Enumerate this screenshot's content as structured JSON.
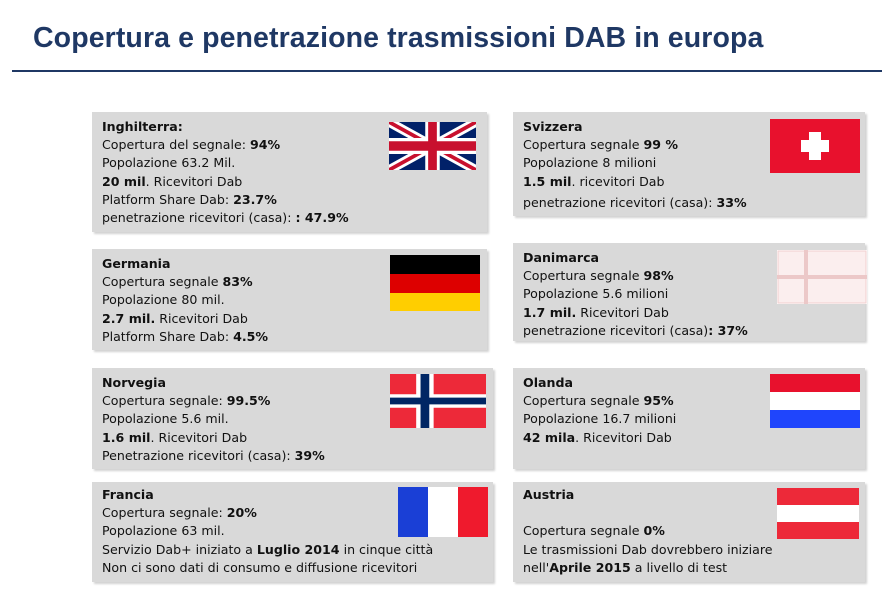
{
  "title": "Copertura e penetrazione trasmissioni DAB in europa",
  "cards": {
    "uk": {
      "l0": "Inghilterra:",
      "l1a": "Copertura del segnale: ",
      "l1b": "94%",
      "l2": "Popolazione 63.2 Mil.",
      "l3a": "20 mil",
      "l3b": ". Ricevitori Dab",
      "l4a": "Platform Share Dab: ",
      "l4b": "23.7%",
      "l5a": "penetrazione ricevitori (casa): ",
      "l5b": ": 47.9%",
      "flag_icon": "united-kingdom-flag-icon"
    },
    "ch": {
      "l0": "Svizzera",
      "l1a": "Copertura segnale ",
      "l1b": "99 %",
      "l2": "Popolazione 8 milioni",
      "l3a": "1.5 mil",
      "l3b": ".  ricevitori Dab",
      "l5a": "penetrazione ricevitori (casa): ",
      "l5b": "33%",
      "flag_icon": "switzerland-flag-icon"
    },
    "de": {
      "l0": "Germania",
      "l1a": "Copertura segnale ",
      "l1b": "83%",
      "l2": "Popolazione 80 mil.",
      "l3a": "2.7 mil.",
      "l3b": " Ricevitori Dab",
      "l4a": "Platform Share Dab: ",
      "l4b": "4.5%",
      "flag_icon": "germany-flag-icon"
    },
    "dk": {
      "l0": "Danimarca",
      "l1a": "Copertura segnale ",
      "l1b": "98%",
      "l2": "Popolazione 5.6 milioni",
      "l3a": "1.7 mil.",
      "l3b": " Ricevitori Dab",
      "l4a": "penetrazione ricevitori (casa)",
      "l4b": ": 37%",
      "flag_icon": "denmark-flag-icon"
    },
    "no": {
      "l0": "Norvegia",
      "l1a": "Copertura segnale: ",
      "l1b": "99.5%",
      "l2": "Popolazione 5.6 mil.",
      "l3a": "1.6 mil",
      "l3b": ". Ricevitori Dab",
      "l4a": "Penetrazione ricevitori (casa): ",
      "l4b": "39%",
      "flag_icon": "norway-flag-icon"
    },
    "nl": {
      "l0": "Olanda",
      "l1a": "Copertura segnale ",
      "l1b": "95%",
      "l2": "Popolazione 16.7 milioni",
      "l3a": "42 mila",
      "l3b": ". Ricevitori Dab",
      "flag_icon": "netherlands-flag-icon"
    },
    "fr": {
      "l0": "Francia",
      "l1a": "Copertura segnale: ",
      "l1b": "20%",
      "l2": "Popolazione 63 mil.",
      "l3a": "Servizio Dab+ iniziato a ",
      "l3b": "Luglio 2014",
      "l3c": " in cinque città",
      "l4": "Non ci sono dati di consumo e diffusione ricevitori",
      "flag_icon": "france-flag-icon"
    },
    "at": {
      "l0": "Austria",
      "l1a": "Copertura segnale ",
      "l1b": "0%",
      "l2": "Le trasmissioni Dab dovrebbero iniziare",
      "l3a": "nell'",
      "l3b": "Aprile 2015",
      "l3c": " a livello di test",
      "flag_icon": "austria-flag-icon"
    }
  },
  "colors": {
    "title": "#1f3864",
    "card_bg": "#d9d9d9",
    "uk_blue": "#012169",
    "uk_red": "#c8102e",
    "ch_red": "#e8112d",
    "de_black": "#000000",
    "de_red": "#dd0000",
    "de_gold": "#ffce00",
    "no_red": "#ed2939",
    "no_blue": "#002664",
    "nl_red": "#e8112d",
    "nl_blue": "#1f45fc",
    "fr_blue": "#0055a4",
    "fr_red": "#ef4135",
    "at_red": "#ed2939"
  }
}
